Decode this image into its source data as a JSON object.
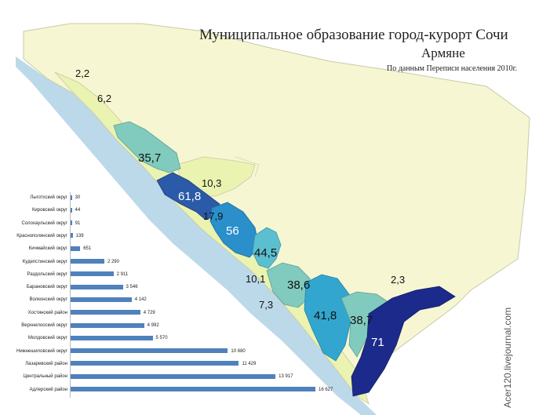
{
  "title": "Муниципальное образование город-курорт Сочи",
  "subtitle": "Армяне",
  "source": "По данным Переписи населения 2010г.",
  "watermark": "Acer120.livejournal.com",
  "colors": {
    "land": "#f7f6d2",
    "sea": "#bcd9ea",
    "coastal": "#eaf3b0",
    "bar": "#4f81bd",
    "shades": [
      "#eaf3b0",
      "#f7f6d2",
      "#80cbbd",
      "#5bbfcf",
      "#32a6cf",
      "#2a78c0",
      "#1f4fa0",
      "#1c2a8c"
    ]
  },
  "map_labels": [
    {
      "text": "2,2",
      "name": "label-lygotkh"
    },
    {
      "text": "6,2",
      "name": "label-kirovsky"
    },
    {
      "text": "35,7",
      "name": "label-solokhaul"
    },
    {
      "text": "10,3",
      "name": "label-krasnopolyansky"
    },
    {
      "text": "61,8",
      "name": "label-kichmay"
    },
    {
      "text": "17,9",
      "name": "label-kudepsta"
    },
    {
      "text": "56",
      "name": "label-razdolsky"
    },
    {
      "text": "44,5",
      "name": "label-baranovsky"
    },
    {
      "text": "10,1",
      "name": "label-volkonsky"
    },
    {
      "text": "38,6",
      "name": "label-khostinsky"
    },
    {
      "text": "7,3",
      "name": "label-verkhnelooo"
    },
    {
      "text": "41,8",
      "name": "label-moldovsky"
    },
    {
      "text": "38,7",
      "name": "label-nizhneshilovsky"
    },
    {
      "text": "2,3",
      "name": "label-upper-land"
    },
    {
      "text": "71",
      "name": "label-adler"
    }
  ],
  "chart_data": {
    "type": "bar",
    "categories": [
      "Лыготхский округ",
      "Кировский округ",
      "Солохаульский округ",
      "Краснополянский округ",
      "Кичмайский округ",
      "Кудепстинский округ",
      "Раздольский округ",
      "Барановский округ",
      "Волконский округ",
      "Хостинский район",
      "Верхнелооский округ",
      "Молдовский округ",
      "Нижнешиловский округ",
      "Лазаревский район",
      "Центральный район",
      "Адлерский район"
    ],
    "values": [
      30,
      44,
      91,
      139,
      651,
      2290,
      2911,
      3546,
      4142,
      4729,
      4992,
      5570,
      10680,
      11429,
      13917,
      16627
    ],
    "value_labels": [
      "30",
      "44",
      "91",
      "139",
      "651",
      "2 290",
      "2 911",
      "3 546",
      "4 142",
      "4 729",
      "4 992",
      "5 570",
      "10 680",
      "11 429",
      "13 917",
      "16 627"
    ],
    "xlim": [
      0,
      16627
    ],
    "title": "",
    "xlabel": "",
    "ylabel": ""
  }
}
